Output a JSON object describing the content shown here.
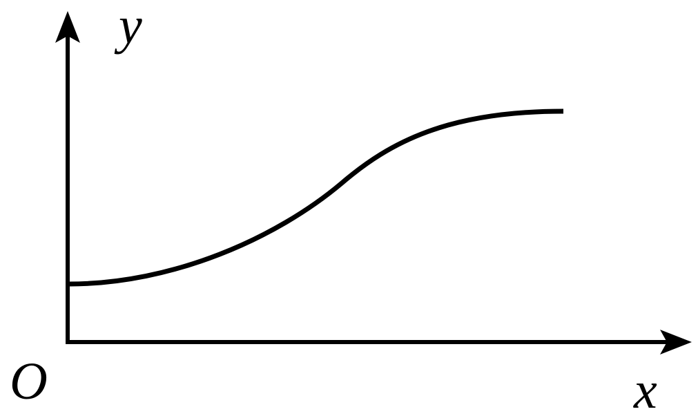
{
  "labels": {
    "y_axis": "y",
    "x_axis": "x",
    "origin": "O"
  },
  "colors": {
    "stroke": "#000000",
    "background": "#ffffff"
  },
  "curve": {
    "shape": "increasing S-shaped curve starting at positive y-intercept with horizontal tangent, levelling off toward a horizontal asymptote"
  }
}
